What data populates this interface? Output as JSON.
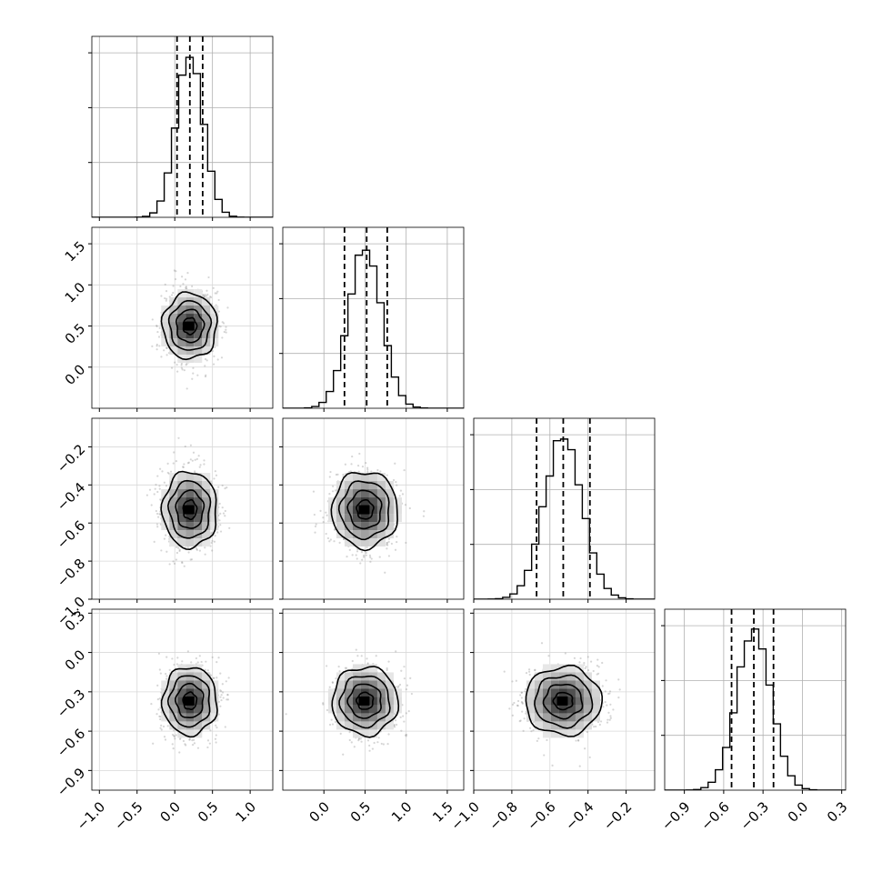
{
  "chart_data": {
    "type": "corner",
    "title": "",
    "parameters": [
      {
        "range": [
          -1.1,
          1.3
        ],
        "ticks": [
          -1.0,
          -0.5,
          0.0,
          0.5,
          1.0
        ],
        "tick_labels": [
          "−1.0",
          "−0.5",
          "0.0",
          "0.5",
          "1.0"
        ],
        "mean": 0.2,
        "sd": 0.18,
        "quantiles": [
          0.03,
          0.2,
          0.37
        ],
        "hist_max": 0.15
      },
      {
        "range": [
          -0.5,
          1.7
        ],
        "ticks": [
          0.0,
          0.5,
          1.0,
          1.5
        ],
        "tick_labels": [
          "0.0",
          "0.5",
          "1.0",
          "1.5"
        ],
        "mean": 0.5,
        "sd": 0.2,
        "quantiles": [
          0.25,
          0.52,
          0.77
        ],
        "hist_max": 0.15
      },
      {
        "range": [
          -1.0,
          -0.05
        ],
        "ticks": [
          -1.0,
          -0.8,
          -0.6,
          -0.4,
          -0.2
        ],
        "tick_labels": [
          "−1.0",
          "−0.8",
          "−0.6",
          "−0.4",
          "−0.2"
        ],
        "mean": -0.53,
        "sd": 0.1,
        "quantiles": [
          -0.67,
          -0.53,
          -0.39
        ],
        "hist_max": 0.15
      },
      {
        "range": [
          -1.05,
          0.33
        ],
        "ticks": [
          -0.9,
          -0.6,
          -0.3,
          0.0,
          0.3
        ],
        "tick_labels": [
          "−0.9",
          "−0.6",
          "−0.3",
          "0.0",
          "0.3"
        ],
        "mean": -0.37,
        "sd": 0.13,
        "quantiles": [
          -0.54,
          -0.37,
          -0.22
        ],
        "hist_max": 0.15
      }
    ],
    "hist_bins": 25,
    "hist_yticks": [
      0.05,
      0.1,
      0.15
    ],
    "grid": true,
    "quantile_line_style": "dashed"
  }
}
